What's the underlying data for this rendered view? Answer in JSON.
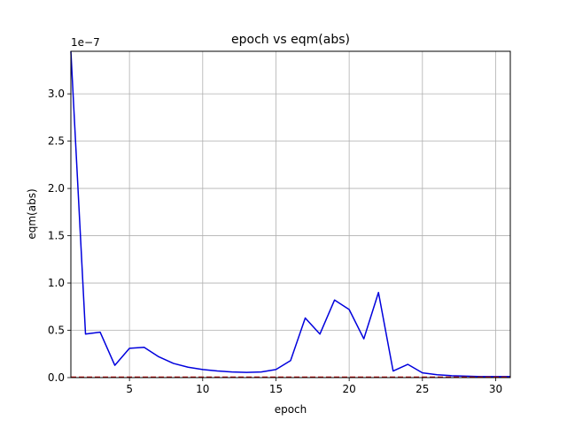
{
  "chart_data": {
    "type": "line",
    "title": "epoch vs eqm(abs)",
    "xlabel": "epoch",
    "ylabel": "eqm(abs)",
    "offset_label": "1e−7",
    "xlim": [
      1,
      31
    ],
    "ylim": [
      0,
      3.45
    ],
    "xticks": [
      5,
      10,
      15,
      20,
      25,
      30
    ],
    "xtick_labels": [
      "5",
      "10",
      "15",
      "20",
      "25",
      "30"
    ],
    "yticks": [
      0,
      0.5,
      1.0,
      1.5,
      2.0,
      2.5,
      3.0
    ],
    "ytick_labels": [
      "0.0",
      "0.5",
      "1.0",
      "1.5",
      "2.0",
      "2.5",
      "3.0"
    ],
    "grid": true,
    "y_scale_factor": 1e-07,
    "series": [
      {
        "color": "#0000dd",
        "x": [
          1,
          2,
          3,
          4,
          5,
          6,
          7,
          8,
          9,
          10,
          11,
          12,
          13,
          14,
          15,
          16,
          17,
          18,
          19,
          20,
          21,
          22,
          23,
          24,
          25,
          26,
          27,
          28,
          29,
          30,
          31
        ],
        "y": [
          3.45,
          0.46,
          0.48,
          0.13,
          0.31,
          0.32,
          0.22,
          0.15,
          0.11,
          0.085,
          0.07,
          0.06,
          0.055,
          0.06,
          0.085,
          0.18,
          0.63,
          0.46,
          0.82,
          0.72,
          0.41,
          0.9,
          0.07,
          0.14,
          0.05,
          0.03,
          0.02,
          0.015,
          0.01,
          0.01,
          0.01
        ]
      },
      {
        "color": "#cc0000",
        "style": "dashed",
        "x": [
          1,
          31
        ],
        "y": [
          0.005,
          0.005
        ]
      }
    ]
  }
}
